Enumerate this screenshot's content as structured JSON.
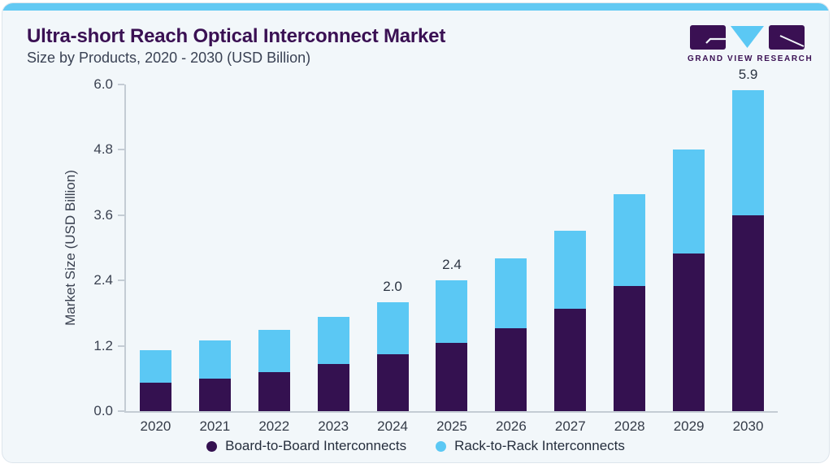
{
  "header": {
    "title": "Ultra-short Reach Optical Interconnect Market",
    "subtitle": "Size by Products, 2020 - 2030 (USD Billion)"
  },
  "brand": {
    "logo_text": "GRAND VIEW RESEARCH"
  },
  "chart_data": {
    "type": "bar",
    "stacked": true,
    "title": "Ultra-short Reach Optical Interconnect Market Size by Products, 2020 - 2030 (USD Billion)",
    "ylabel": "Market Size (USD Billion)",
    "xlabel": "",
    "ylim": [
      0,
      6
    ],
    "yticks": [
      "0.0",
      "1.2",
      "2.4",
      "3.6",
      "4.8",
      "6.0"
    ],
    "grid": false,
    "legend_position": "bottom",
    "categories": [
      "2020",
      "2021",
      "2022",
      "2023",
      "2024",
      "2025",
      "2026",
      "2027",
      "2028",
      "2029",
      "2030"
    ],
    "series": [
      {
        "name": "Board-to-Board Interconnects",
        "color": "#341150",
        "values": [
          0.52,
          0.6,
          0.72,
          0.86,
          1.05,
          1.25,
          1.52,
          1.88,
          2.3,
          2.9,
          3.6
        ]
      },
      {
        "name": "Rack-to-Rack Interconnects",
        "color": "#5BC8F4",
        "values": [
          0.6,
          0.7,
          0.78,
          0.87,
          0.95,
          1.15,
          1.28,
          1.44,
          1.68,
          1.9,
          2.3
        ]
      }
    ],
    "bar_total_labels": [
      "",
      "",
      "",
      "",
      "2.0",
      "2.4",
      "",
      "",
      "",
      "",
      "5.9"
    ]
  },
  "colors": {
    "accent_top_bar": "#62C9F3",
    "board_purple": "#341150",
    "rack_blue": "#5BC8F4",
    "title_purple": "#3A1053",
    "card_background": "#F2F7FA",
    "axis_line": "#C4CCD4"
  }
}
